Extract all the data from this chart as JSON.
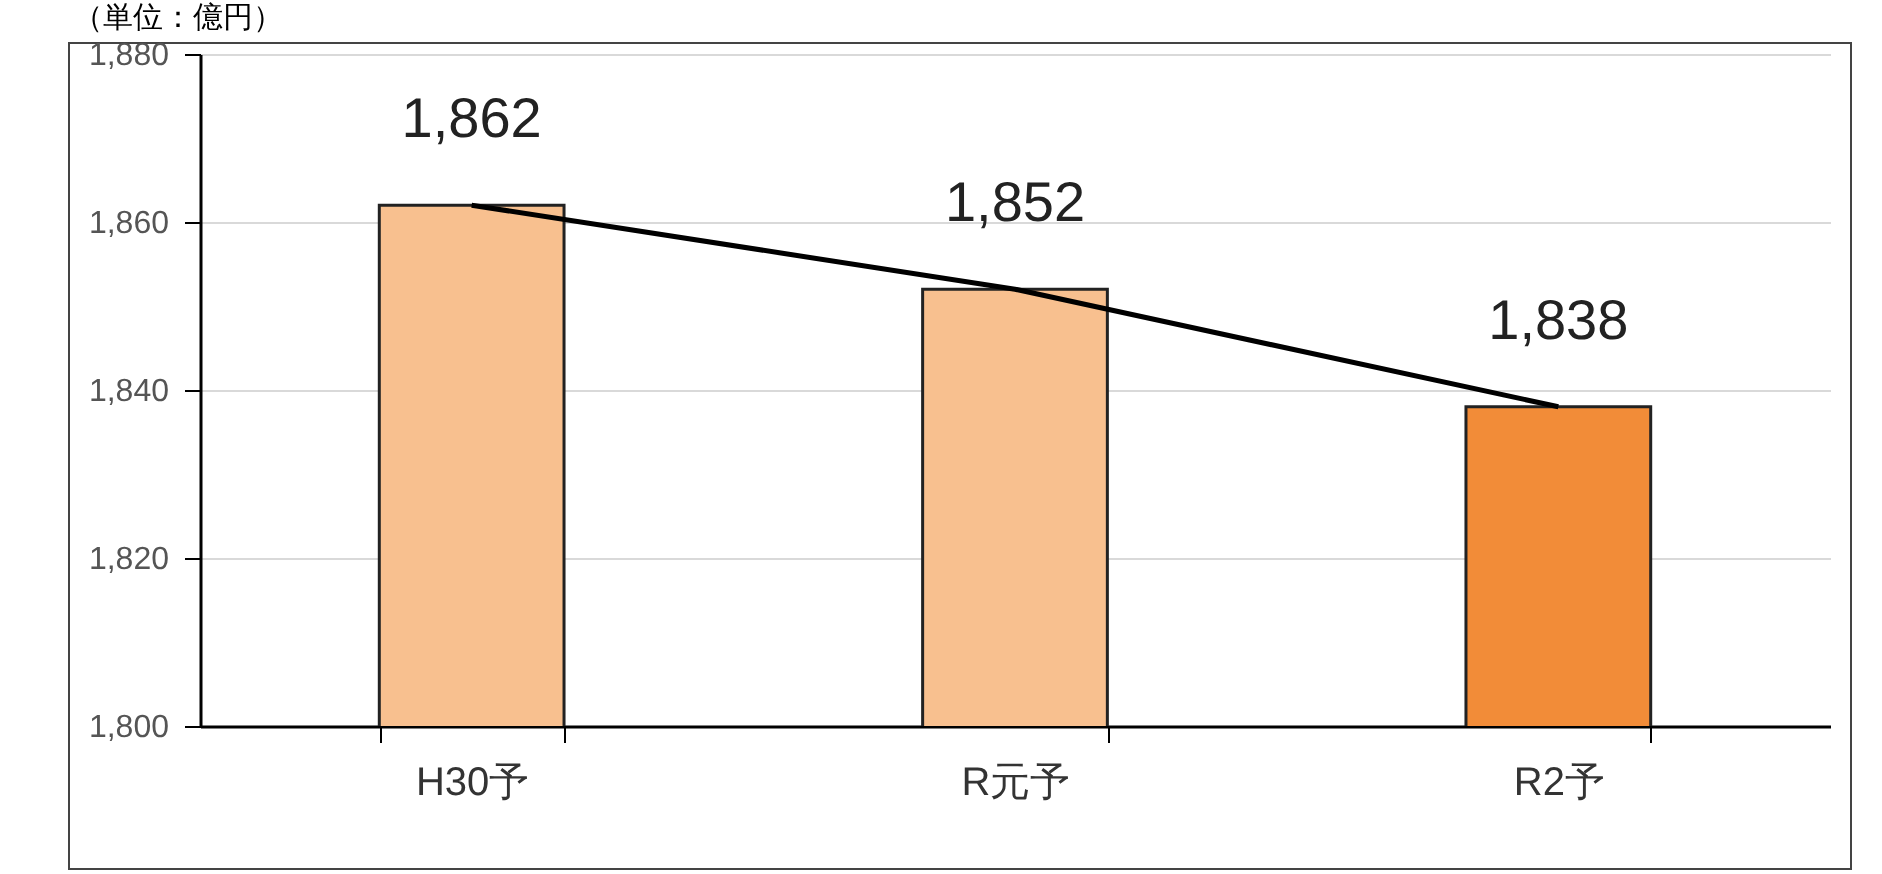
{
  "chart_data": {
    "type": "bar",
    "ylabel": "（単位：億円）",
    "categories": [
      "H30予",
      "R元予",
      "R2予"
    ],
    "series": [
      {
        "colors": [
          "#f8c08f",
          "#f8c08f",
          "#f28c38"
        ],
        "values": [
          1862,
          1852,
          1838
        ],
        "value_labels": [
          "1,862",
          "1,852",
          "1,838"
        ]
      },
      {
        "type": "line",
        "color": "#000000",
        "values": [
          1862,
          1852,
          1838
        ]
      }
    ],
    "ylim": [
      1800,
      1880
    ],
    "yticks": [
      {
        "value": 1800,
        "label": "1,800"
      },
      {
        "value": 1820,
        "label": "1,820"
      },
      {
        "value": 1840,
        "label": "1,840"
      },
      {
        "value": 1860,
        "label": "1,860"
      },
      {
        "value": 1880,
        "label": "1,880"
      }
    ],
    "grid": "y"
  }
}
